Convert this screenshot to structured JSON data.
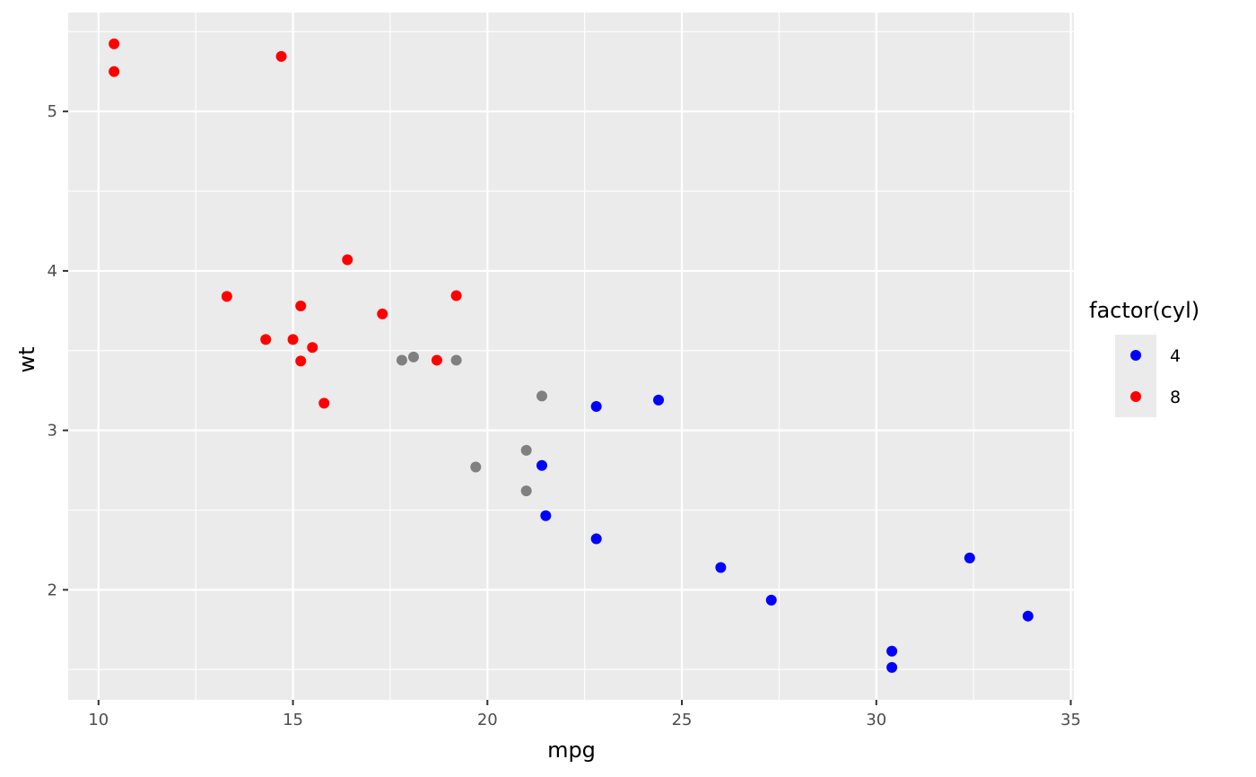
{
  "chart_data": {
    "type": "scatter",
    "xlabel": "mpg",
    "ylabel": "wt",
    "xlim": [
      9.22,
      35.08
    ],
    "ylim": [
      1.31,
      5.62
    ],
    "x_ticks": [
      10,
      15,
      20,
      25,
      30,
      35
    ],
    "y_ticks": [
      2,
      3,
      4,
      5
    ],
    "x_minor": [
      12.5,
      17.5,
      22.5,
      27.5,
      32.5
    ],
    "y_minor": [
      1.5,
      2.5,
      3.5,
      4.5,
      5.5
    ],
    "grid": true,
    "legend": {
      "title": "factor(cyl)",
      "position": "right",
      "entries": [
        {
          "label": "4",
          "color": "#0000ff"
        },
        {
          "label": "8",
          "color": "#ff0000"
        }
      ]
    },
    "colors": {
      "panel_bg": "#ebebeb",
      "grid": "#ffffff",
      "cyl6": "#808080"
    },
    "series": [
      {
        "name": "4",
        "color": "#0000ff",
        "points": [
          {
            "x": 22.8,
            "y": 2.32
          },
          {
            "x": 24.4,
            "y": 3.19
          },
          {
            "x": 22.8,
            "y": 3.15
          },
          {
            "x": 32.4,
            "y": 2.2
          },
          {
            "x": 30.4,
            "y": 1.615
          },
          {
            "x": 33.9,
            "y": 1.835
          },
          {
            "x": 21.5,
            "y": 2.465
          },
          {
            "x": 27.3,
            "y": 1.935
          },
          {
            "x": 26.0,
            "y": 2.14
          },
          {
            "x": 30.4,
            "y": 1.513
          },
          {
            "x": 21.4,
            "y": 2.78
          }
        ]
      },
      {
        "color": "#808080",
        "points": [
          {
            "x": 21.0,
            "y": 2.62
          },
          {
            "x": 21.0,
            "y": 2.875
          },
          {
            "x": 21.4,
            "y": 3.215
          },
          {
            "x": 18.1,
            "y": 3.46
          },
          {
            "x": 19.2,
            "y": 3.44
          },
          {
            "x": 17.8,
            "y": 3.44
          },
          {
            "x": 19.7,
            "y": 2.77
          }
        ]
      },
      {
        "name": "8",
        "color": "#ff0000",
        "points": [
          {
            "x": 18.7,
            "y": 3.44
          },
          {
            "x": 14.3,
            "y": 3.57
          },
          {
            "x": 16.4,
            "y": 4.07
          },
          {
            "x": 17.3,
            "y": 3.73
          },
          {
            "x": 15.2,
            "y": 3.78
          },
          {
            "x": 10.4,
            "y": 5.25
          },
          {
            "x": 10.4,
            "y": 5.424
          },
          {
            "x": 14.7,
            "y": 5.345
          },
          {
            "x": 15.5,
            "y": 3.52
          },
          {
            "x": 15.2,
            "y": 3.435
          },
          {
            "x": 13.3,
            "y": 3.84
          },
          {
            "x": 19.2,
            "y": 3.845
          },
          {
            "x": 15.8,
            "y": 3.17
          },
          {
            "x": 15.0,
            "y": 3.57
          }
        ]
      }
    ]
  }
}
